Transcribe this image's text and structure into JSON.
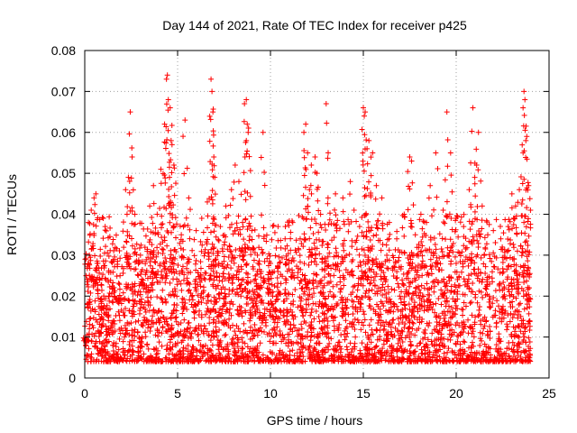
{
  "chart_data": {
    "type": "scatter",
    "title": "Day 144 of 2021, Rate Of TEC Index for receiver p425",
    "xlabel": "GPS time / hours",
    "ylabel": "ROTI / TECUs",
    "xlim": [
      0,
      25
    ],
    "ylim": [
      0,
      0.08
    ],
    "xticks": [
      0,
      5,
      10,
      15,
      20,
      25
    ],
    "xtick_labels": [
      "0",
      "5",
      "10",
      "15",
      "20",
      "25"
    ],
    "yticks": [
      0,
      0.01,
      0.02,
      0.03,
      0.04,
      0.05,
      0.06,
      0.07,
      0.08
    ],
    "ytick_labels": [
      "0",
      "0.01",
      "0.02",
      "0.03",
      "0.04",
      "0.05",
      "0.06",
      "0.07",
      "0.08"
    ],
    "grid": true,
    "marker": "+",
    "color": "#ff0000",
    "x_range_data": [
      0.0,
      24.0
    ],
    "series": [
      {
        "name": "ROTI",
        "points": [
          [
            0.05,
            0.009
          ],
          [
            0.2,
            0.038
          ],
          [
            0.25,
            0.03
          ],
          [
            0.35,
            0.041
          ],
          [
            0.5,
            0.044
          ],
          [
            0.6,
            0.045
          ],
          [
            0.8,
            0.024
          ],
          [
            0.9,
            0.015
          ],
          [
            1.0,
            0.039
          ],
          [
            1.1,
            0.037
          ],
          [
            1.3,
            0.02
          ],
          [
            1.6,
            0.029
          ],
          [
            1.9,
            0.025
          ],
          [
            2.2,
            0.046
          ],
          [
            2.35,
            0.049
          ],
          [
            2.45,
            0.065
          ],
          [
            2.55,
            0.054
          ],
          [
            2.7,
            0.04
          ],
          [
            3.0,
            0.03
          ],
          [
            3.3,
            0.021
          ],
          [
            3.5,
            0.042
          ],
          [
            3.7,
            0.047
          ],
          [
            3.9,
            0.04
          ],
          [
            4.1,
            0.051
          ],
          [
            4.3,
            0.062
          ],
          [
            4.4,
            0.073
          ],
          [
            4.45,
            0.074
          ],
          [
            4.5,
            0.068
          ],
          [
            4.6,
            0.066
          ],
          [
            4.65,
            0.058
          ],
          [
            4.7,
            0.057
          ],
          [
            4.8,
            0.052
          ],
          [
            5.2,
            0.035
          ],
          [
            5.4,
            0.063
          ],
          [
            5.6,
            0.044
          ],
          [
            6.0,
            0.036
          ],
          [
            6.3,
            0.039
          ],
          [
            6.6,
            0.043
          ],
          [
            6.8,
            0.073
          ],
          [
            6.85,
            0.07
          ],
          [
            6.9,
            0.065
          ],
          [
            6.95,
            0.054
          ],
          [
            7.0,
            0.049
          ],
          [
            7.3,
            0.037
          ],
          [
            7.6,
            0.042
          ],
          [
            7.9,
            0.046
          ],
          [
            8.1,
            0.052
          ],
          [
            8.3,
            0.048
          ],
          [
            8.5,
            0.038
          ],
          [
            8.6,
            0.067
          ],
          [
            8.7,
            0.068
          ],
          [
            8.75,
            0.062
          ],
          [
            8.8,
            0.06
          ],
          [
            9.0,
            0.036
          ],
          [
            9.3,
            0.03
          ],
          [
            9.5,
            0.026
          ],
          [
            9.6,
            0.06
          ],
          [
            10.0,
            0.028
          ],
          [
            10.4,
            0.026
          ],
          [
            10.8,
            0.037
          ],
          [
            11.2,
            0.038
          ],
          [
            11.6,
            0.034
          ],
          [
            11.8,
            0.06
          ],
          [
            11.9,
            0.062
          ],
          [
            12.0,
            0.055
          ],
          [
            12.1,
            0.046
          ],
          [
            12.2,
            0.052
          ],
          [
            12.4,
            0.054
          ],
          [
            12.5,
            0.05
          ],
          [
            12.7,
            0.04
          ],
          [
            12.8,
            0.029
          ],
          [
            13.0,
            0.067
          ],
          [
            13.1,
            0.044
          ],
          [
            13.5,
            0.045
          ],
          [
            13.9,
            0.044
          ],
          [
            14.3,
            0.048
          ],
          [
            14.5,
            0.041
          ],
          [
            14.8,
            0.037
          ],
          [
            15.0,
            0.066
          ],
          [
            15.05,
            0.064
          ],
          [
            15.1,
            0.065
          ],
          [
            15.2,
            0.056
          ],
          [
            15.3,
            0.058
          ],
          [
            15.5,
            0.055
          ],
          [
            15.7,
            0.047
          ],
          [
            16.0,
            0.044
          ],
          [
            16.4,
            0.038
          ],
          [
            16.8,
            0.034
          ],
          [
            17.2,
            0.04
          ],
          [
            17.5,
            0.054
          ],
          [
            17.6,
            0.053
          ],
          [
            17.8,
            0.035
          ],
          [
            18.1,
            0.04
          ],
          [
            18.4,
            0.038
          ],
          [
            18.6,
            0.047
          ],
          [
            18.9,
            0.055
          ],
          [
            19.3,
            0.041
          ],
          [
            19.5,
            0.065
          ],
          [
            19.7,
            0.055
          ],
          [
            20.0,
            0.039
          ],
          [
            20.4,
            0.037
          ],
          [
            20.7,
            0.046
          ],
          [
            20.9,
            0.066
          ],
          [
            21.0,
            0.049
          ],
          [
            21.1,
            0.052
          ],
          [
            21.2,
            0.06
          ],
          [
            21.4,
            0.042
          ],
          [
            21.7,
            0.035
          ],
          [
            22.0,
            0.036
          ],
          [
            22.4,
            0.034
          ],
          [
            22.8,
            0.037
          ],
          [
            23.0,
            0.045
          ],
          [
            23.2,
            0.042
          ],
          [
            23.4,
            0.046
          ],
          [
            23.6,
            0.066
          ],
          [
            23.65,
            0.07
          ],
          [
            23.7,
            0.068
          ],
          [
            23.75,
            0.058
          ],
          [
            23.8,
            0.059
          ],
          [
            23.9,
            0.047
          ],
          [
            24.0,
            0.041
          ]
        ]
      }
    ]
  }
}
